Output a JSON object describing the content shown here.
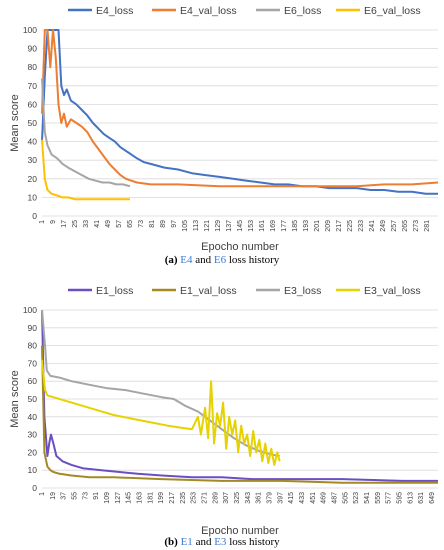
{
  "chart_data": [
    {
      "type": "line",
      "xlabel": "Epocho number",
      "ylabel": "Mean score",
      "ylim": [
        0,
        100
      ],
      "yticks": [
        0,
        10,
        20,
        30,
        40,
        50,
        60,
        70,
        80,
        90,
        100
      ],
      "xmax": 289,
      "xticks": [
        1,
        9,
        17,
        25,
        33,
        41,
        49,
        57,
        65,
        73,
        81,
        89,
        97,
        105,
        113,
        121,
        129,
        137,
        145,
        153,
        161,
        169,
        177,
        185,
        193,
        201,
        209,
        217,
        225,
        233,
        241,
        249,
        257,
        265,
        273,
        281
      ],
      "grid": true,
      "legend_position": "top",
      "series": [
        {
          "name": "E4_loss",
          "color": "#4472c4",
          "points": [
            [
              1,
              40
            ],
            [
              3,
              75
            ],
            [
              5,
              100
            ],
            [
              8,
              100
            ],
            [
              11,
              100
            ],
            [
              13,
              100
            ],
            [
              15,
              70
            ],
            [
              17,
              65
            ],
            [
              19,
              68
            ],
            [
              22,
              62
            ],
            [
              26,
              60
            ],
            [
              30,
              57
            ],
            [
              34,
              54
            ],
            [
              38,
              50
            ],
            [
              42,
              47
            ],
            [
              46,
              44
            ],
            [
              50,
              42
            ],
            [
              54,
              40
            ],
            [
              58,
              37
            ],
            [
              62,
              35
            ],
            [
              66,
              33
            ],
            [
              70,
              31
            ],
            [
              75,
              29
            ],
            [
              80,
              28
            ],
            [
              90,
              26
            ],
            [
              100,
              25
            ],
            [
              110,
              23
            ],
            [
              120,
              22
            ],
            [
              130,
              21
            ],
            [
              140,
              20
            ],
            [
              150,
              19
            ],
            [
              160,
              18
            ],
            [
              170,
              17
            ],
            [
              180,
              17
            ],
            [
              190,
              16
            ],
            [
              200,
              16
            ],
            [
              210,
              15
            ],
            [
              220,
              15
            ],
            [
              230,
              15
            ],
            [
              240,
              14
            ],
            [
              250,
              14
            ],
            [
              260,
              13
            ],
            [
              270,
              13
            ],
            [
              280,
              12
            ],
            [
              289,
              12
            ]
          ]
        },
        {
          "name": "E4_val_loss",
          "color": "#ed7d31",
          "points": [
            [
              1,
              55
            ],
            [
              3,
              100
            ],
            [
              5,
              100
            ],
            [
              7,
              80
            ],
            [
              9,
              100
            ],
            [
              11,
              85
            ],
            [
              13,
              60
            ],
            [
              15,
              50
            ],
            [
              17,
              55
            ],
            [
              19,
              48
            ],
            [
              22,
              52
            ],
            [
              26,
              50
            ],
            [
              30,
              48
            ],
            [
              34,
              45
            ],
            [
              38,
              40
            ],
            [
              42,
              36
            ],
            [
              46,
              32
            ],
            [
              50,
              28
            ],
            [
              54,
              25
            ],
            [
              58,
              22
            ],
            [
              62,
              20
            ],
            [
              66,
              19
            ],
            [
              70,
              18
            ],
            [
              80,
              17
            ],
            [
              100,
              17
            ],
            [
              130,
              16
            ],
            [
              150,
              16
            ],
            [
              170,
              16
            ],
            [
              190,
              16
            ],
            [
              210,
              16
            ],
            [
              230,
              16
            ],
            [
              250,
              17
            ],
            [
              270,
              17
            ],
            [
              289,
              18
            ]
          ]
        },
        {
          "name": "E6_loss",
          "color": "#a5a5a5",
          "points": [
            [
              1,
              74
            ],
            [
              3,
              45
            ],
            [
              5,
              38
            ],
            [
              8,
              33
            ],
            [
              12,
              31
            ],
            [
              16,
              28
            ],
            [
              20,
              26
            ],
            [
              25,
              24
            ],
            [
              30,
              22
            ],
            [
              35,
              20
            ],
            [
              40,
              19
            ],
            [
              45,
              18
            ],
            [
              50,
              18
            ],
            [
              55,
              17
            ],
            [
              60,
              17
            ],
            [
              65,
              16
            ]
          ]
        },
        {
          "name": "E6_val_loss",
          "color": "#ffc000",
          "points": [
            [
              1,
              41
            ],
            [
              3,
              20
            ],
            [
              5,
              14
            ],
            [
              8,
              12
            ],
            [
              12,
              11
            ],
            [
              16,
              10
            ],
            [
              20,
              10
            ],
            [
              25,
              9
            ],
            [
              30,
              9
            ],
            [
              40,
              9
            ],
            [
              50,
              9
            ],
            [
              60,
              9
            ],
            [
              65,
              9
            ]
          ]
        }
      ]
    },
    {
      "type": "line",
      "xlabel": "Epocho number",
      "ylabel": "Mean score",
      "ylim": [
        0,
        100
      ],
      "yticks": [
        0,
        10,
        20,
        30,
        40,
        50,
        60,
        70,
        80,
        90,
        100
      ],
      "xmax": 659,
      "xticks": [
        1,
        19,
        37,
        55,
        73,
        91,
        109,
        127,
        145,
        163,
        181,
        199,
        217,
        235,
        253,
        271,
        289,
        307,
        325,
        343,
        361,
        379,
        397,
        415,
        433,
        451,
        469,
        487,
        505,
        523,
        541,
        559,
        577,
        595,
        613,
        631,
        649
      ],
      "grid": true,
      "legend_position": "top",
      "series": [
        {
          "name": "E1_loss",
          "color": "#6a4fc2",
          "points": [
            [
              1,
              100
            ],
            [
              5,
              40
            ],
            [
              10,
              18
            ],
            [
              13,
              25
            ],
            [
              16,
              30
            ],
            [
              20,
              25
            ],
            [
              25,
              18
            ],
            [
              35,
              15
            ],
            [
              50,
              13
            ],
            [
              70,
              11
            ],
            [
              100,
              10
            ],
            [
              130,
              9
            ],
            [
              160,
              8
            ],
            [
              200,
              7
            ],
            [
              250,
              6
            ],
            [
              300,
              6
            ],
            [
              350,
              5
            ],
            [
              400,
              5
            ],
            [
              500,
              5
            ],
            [
              600,
              4
            ],
            [
              659,
              4
            ]
          ]
        },
        {
          "name": "E1_val_loss",
          "color": "#a48a24",
          "points": [
            [
              1,
              80
            ],
            [
              5,
              20
            ],
            [
              10,
              12
            ],
            [
              15,
              10
            ],
            [
              20,
              9
            ],
            [
              30,
              8
            ],
            [
              50,
              7
            ],
            [
              80,
              6
            ],
            [
              120,
              6
            ],
            [
              200,
              5
            ],
            [
              300,
              4
            ],
            [
              400,
              4
            ],
            [
              500,
              3
            ],
            [
              600,
              3
            ],
            [
              659,
              3
            ]
          ]
        },
        {
          "name": "E3_loss",
          "color": "#a5a5a5",
          "points": [
            [
              1,
              100
            ],
            [
              6,
              80
            ],
            [
              9,
              66
            ],
            [
              15,
              63
            ],
            [
              30,
              62
            ],
            [
              50,
              60
            ],
            [
              80,
              58
            ],
            [
              110,
              56
            ],
            [
              140,
              55
            ],
            [
              170,
              53
            ],
            [
              200,
              51
            ],
            [
              220,
              50
            ],
            [
              240,
              46
            ],
            [
              260,
              43
            ],
            [
              280,
              38
            ],
            [
              300,
              33
            ],
            [
              320,
              28
            ],
            [
              340,
              24
            ],
            [
              360,
              21
            ],
            [
              380,
              19
            ],
            [
              396,
              18
            ]
          ]
        },
        {
          "name": "E3_val_loss",
          "color": "#e6d200",
          "points": [
            [
              1,
              72
            ],
            [
              6,
              55
            ],
            [
              10,
              52
            ],
            [
              20,
              51
            ],
            [
              40,
              49
            ],
            [
              60,
              47
            ],
            [
              90,
              44
            ],
            [
              120,
              41
            ],
            [
              150,
              39
            ],
            [
              180,
              37
            ],
            [
              210,
              35
            ],
            [
              230,
              34
            ],
            [
              250,
              33
            ],
            [
              260,
              40
            ],
            [
              265,
              30
            ],
            [
              272,
              45
            ],
            [
              277,
              28
            ],
            [
              282,
              60
            ],
            [
              287,
              25
            ],
            [
              292,
              42
            ],
            [
              297,
              35
            ],
            [
              302,
              48
            ],
            [
              307,
              22
            ],
            [
              312,
              40
            ],
            [
              317,
              30
            ],
            [
              322,
              38
            ],
            [
              327,
              20
            ],
            [
              332,
              35
            ],
            [
              337,
              25
            ],
            [
              342,
              30
            ],
            [
              347,
              18
            ],
            [
              352,
              32
            ],
            [
              357,
              20
            ],
            [
              362,
              27
            ],
            [
              367,
              15
            ],
            [
              372,
              25
            ],
            [
              377,
              14
            ],
            [
              382,
              22
            ],
            [
              387,
              13
            ],
            [
              392,
              20
            ],
            [
              396,
              15
            ]
          ]
        }
      ]
    }
  ],
  "captions": {
    "a": {
      "label": "(a)",
      "m1": "E4",
      "and": "and",
      "m2": "E6",
      "tail": "loss history"
    },
    "b": {
      "label": "(b)",
      "m1": "E1",
      "and": "and",
      "m2": "E3",
      "tail": "loss history"
    }
  }
}
